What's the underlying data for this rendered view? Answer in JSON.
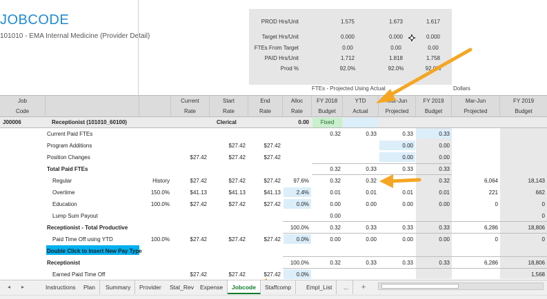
{
  "title": "JOBCODE",
  "subtitle": "101010 - EMA Internal Medicine (Provider Detail)",
  "summary": {
    "rows": [
      {
        "label": "PROD Hrs/Unit",
        "v1": "1.575",
        "v2": "1.673",
        "v3": "1.617"
      },
      {
        "label": "Target Hrs/Unit",
        "v1": "0.000",
        "v2": "0.000",
        "v3": "0.000"
      },
      {
        "label": "FTEs From Target",
        "v1": "0.00",
        "v2": "0.00",
        "v3": "0.00"
      },
      {
        "label": "PAID Hrs/Unit",
        "v1": "1.712",
        "v2": "1.818",
        "v3": "1.758"
      },
      {
        "label": "Prod %",
        "v1": "92.0%",
        "v2": "92.0%",
        "v3": "92.0%"
      }
    ]
  },
  "band_labels": {
    "ftes": "FTEs - Projected Using Actual",
    "dollars": "Dollars"
  },
  "headers": {
    "job_code": [
      "Job",
      "Code"
    ],
    "current_rate": [
      "Current",
      "Rate"
    ],
    "start_rate": [
      "Start",
      "Rate"
    ],
    "end_rate": [
      "End",
      "Rate"
    ],
    "alloc_rate": [
      "Alloc",
      "Rate"
    ],
    "fy2018_budget": [
      "FY 2018",
      "Budget"
    ],
    "ytd_actual": [
      "YTD",
      "Actual"
    ],
    "marjun_projected": [
      "Mar-Jun",
      "Projected"
    ],
    "fy2019_budget": [
      "FY 2019",
      "Budget"
    ],
    "dollars_marjun_projected": [
      "Mar-Jun",
      "Projected"
    ],
    "dollars_fy2019_budget": [
      "FY 2019",
      "Budget"
    ]
  },
  "section_row": {
    "code": "J00006",
    "name": "Receptionist (101010_60100)",
    "category": "Clerical",
    "alloc": "0.00",
    "fy2018": "Fixed"
  },
  "rows": [
    {
      "label": "Current Paid FTEs",
      "bold": false,
      "indent": 0,
      "a": "",
      "cur": "",
      "start": "",
      "end": "",
      "alloc": "",
      "fy18": "0.32",
      "ytd": "0.33",
      "proj": "0.33",
      "fy19": "0.33",
      "dproj": "",
      "dfy19": ""
    },
    {
      "label": "Program Additions",
      "bold": false,
      "indent": 0,
      "a": "",
      "cur": "",
      "start": "$27.42",
      "end": "$27.42",
      "alloc": "",
      "fy18": "",
      "ytd": "",
      "proj": "0.00",
      "fy19": "0.00",
      "dproj": "",
      "dfy19": ""
    },
    {
      "label": "Position Changes",
      "bold": false,
      "indent": 0,
      "a": "",
      "cur": "$27.42",
      "start": "$27.42",
      "end": "$27.42",
      "alloc": "",
      "fy18": "",
      "ytd": "",
      "proj": "0.00",
      "fy19": "0.00",
      "dproj": "",
      "dfy19": ""
    },
    {
      "label": "Total Paid FTEs",
      "bold": true,
      "indent": 0,
      "a": "",
      "cur": "",
      "start": "",
      "end": "",
      "alloc": "",
      "fy18": "0.32",
      "ytd": "0.33",
      "proj": "0.33",
      "fy19": "0.33",
      "dproj": "",
      "dfy19": ""
    },
    {
      "label": "Regular",
      "bold": false,
      "indent": 8,
      "a": "History",
      "cur": "$27.42",
      "start": "$27.42",
      "end": "$27.42",
      "alloc": "97.6%",
      "fy18": "0.32",
      "ytd": "0.32",
      "proj": "",
      "fy19": "0.32",
      "dproj": "6,064",
      "dfy19": "18,143"
    },
    {
      "label": "Overtime",
      "bold": false,
      "indent": 8,
      "a": "150.0%",
      "cur": "$41.13",
      "start": "$41.13",
      "end": "$41.13",
      "alloc": "2.4%",
      "fy18": "0.01",
      "ytd": "0.01",
      "proj": "0.01",
      "fy19": "0.01",
      "dproj": "221",
      "dfy19": "662"
    },
    {
      "label": "Education",
      "bold": false,
      "indent": 8,
      "a": "100.0%",
      "cur": "$27.42",
      "start": "$27.42",
      "end": "$27.42",
      "alloc": "0.0%",
      "fy18": "0.00",
      "ytd": "0.00",
      "proj": "0.00",
      "fy19": "0.00",
      "dproj": "0",
      "dfy19": "0"
    },
    {
      "label": "Lump Sum Payout",
      "bold": false,
      "indent": 8,
      "a": "",
      "cur": "",
      "start": "",
      "end": "",
      "alloc": "",
      "fy18": "0.00",
      "ytd": "",
      "proj": "",
      "fy19": "",
      "dproj": "",
      "dfy19": "0"
    },
    {
      "label": "Receptionist - Total Productive",
      "bold": true,
      "indent": 0,
      "a": "",
      "cur": "",
      "start": "",
      "end": "",
      "alloc": "100.0%",
      "fy18": "0.32",
      "ytd": "0.33",
      "proj": "0.33",
      "fy19": "0.33",
      "dproj": "6,286",
      "dfy19": "18,806"
    },
    {
      "label": "Paid Time Off using YTD",
      "bold": false,
      "indent": 8,
      "a": "100.0%",
      "cur": "$27.42",
      "start": "$27.42",
      "end": "$27.42",
      "alloc": "0.0%",
      "fy18": "0.00",
      "ytd": "0.00",
      "proj": "0.00",
      "fy19": "0.00",
      "dproj": "0",
      "dfy19": "0"
    },
    {
      "label": "Double Click to Insert New Pay Type",
      "bold": true,
      "indent": 0,
      "a": "",
      "cur": "",
      "start": "",
      "end": "",
      "alloc": "",
      "fy18": "",
      "ytd": "",
      "proj": "",
      "fy19": "",
      "dproj": "",
      "dfy19": ""
    },
    {
      "label": "Receptionist",
      "bold": true,
      "indent": 0,
      "a": "",
      "cur": "",
      "start": "",
      "end": "",
      "alloc": "100.0%",
      "fy18": "0.32",
      "ytd": "0.33",
      "proj": "0.33",
      "fy19": "0.33",
      "dproj": "6,286",
      "dfy19": "18,806"
    },
    {
      "label": "Earned Paid Time Off",
      "bold": false,
      "indent": 8,
      "a": "",
      "cur": "$27.42",
      "start": "$27.42",
      "end": "$27.42",
      "alloc": "0.0%",
      "fy18": "",
      "ytd": "",
      "proj": "",
      "fy19": "",
      "dproj": "",
      "dfy19": "1,568"
    }
  ],
  "tabs": {
    "items": [
      "Instructions",
      "Plan",
      "Summary",
      "Provider",
      "Stat_Rev",
      "Expense",
      "Jobcode",
      "Staffcomp",
      "Empl_List",
      "..."
    ],
    "active": "Jobcode",
    "prev_icon": "triangle-left-icon",
    "next_icon": "triangle-right-icon",
    "add_icon": "plus-icon"
  },
  "annotations": {
    "arrow_color": "#f5a623",
    "highlight_color": "#00b0f0"
  }
}
